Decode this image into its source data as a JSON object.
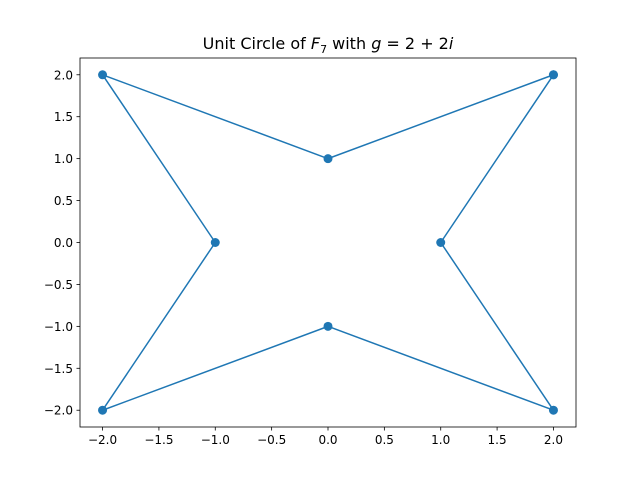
{
  "chart_data": {
    "type": "line",
    "title": "Unit Circle of F7 with g = 2 + 2i",
    "title_parts": {
      "prefix": "Unit Circle of ",
      "var": "F",
      "sub": "7",
      "mid": " with ",
      "g": "g",
      "eq": " = 2 + 2",
      "i": "i"
    },
    "xlabel": "",
    "ylabel": "",
    "xlim": [
      -2.2,
      2.2
    ],
    "ylim": [
      -2.2,
      2.2
    ],
    "xticks": [
      -2.0,
      -1.5,
      -1.0,
      -0.5,
      0.0,
      0.5,
      1.0,
      1.5,
      2.0
    ],
    "xtick_labels": [
      "−2.0",
      "−1.5",
      "−1.0",
      "−0.5",
      "0.0",
      "0.5",
      "1.0",
      "1.5",
      "2.0"
    ],
    "yticks": [
      -2.0,
      -1.5,
      -1.0,
      -0.5,
      0.0,
      0.5,
      1.0,
      1.5,
      2.0
    ],
    "ytick_labels": [
      "−2.0",
      "−1.5",
      "−1.0",
      "−0.5",
      "0.0",
      "0.5",
      "1.0",
      "1.5",
      "2.0"
    ],
    "grid": false,
    "color": "#1f77b4",
    "series": [
      {
        "x": [
          2,
          1,
          2,
          0,
          -2,
          -1,
          -2,
          0,
          2
        ],
        "y": [
          2,
          0,
          -2,
          -1,
          -2,
          0,
          2,
          1,
          2
        ]
      }
    ]
  }
}
